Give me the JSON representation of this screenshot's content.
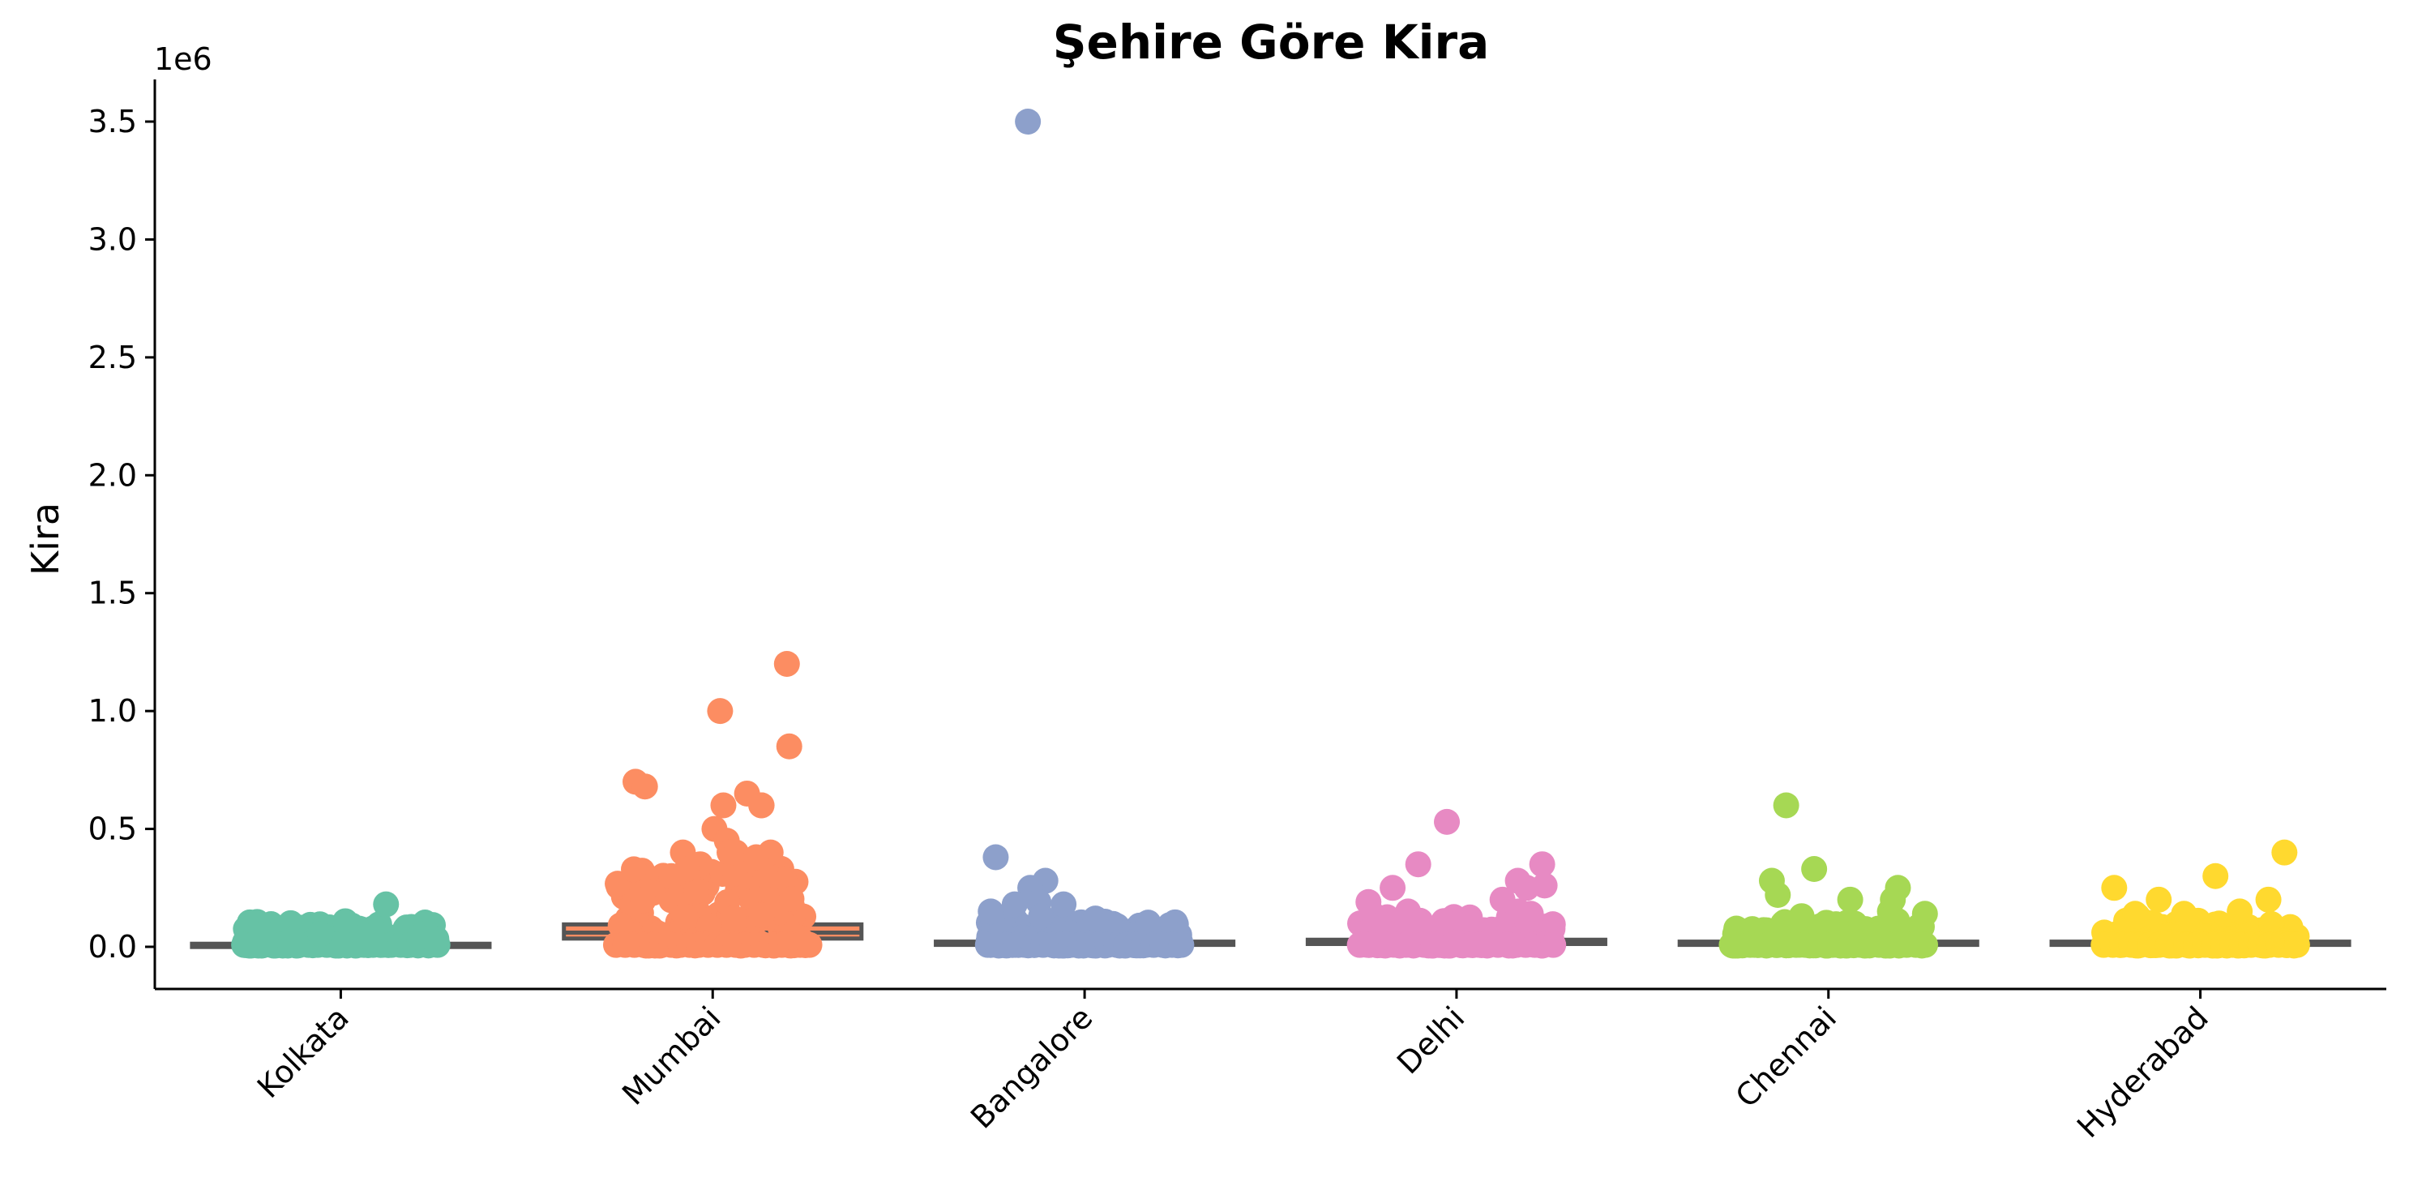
{
  "chart_data": {
    "type": "box-strip",
    "title": "Şehire Göre Kira",
    "xlabel": "",
    "ylabel": "Kira",
    "y_offset_label": "1e6",
    "y_scale_factor": 1000000,
    "ylim": [
      -180000,
      3680000
    ],
    "y_ticks": [
      0,
      500000,
      1000000,
      1500000,
      2000000,
      2500000,
      3000000,
      3500000
    ],
    "y_tick_labels": [
      "0.0",
      "0.5",
      "1.0",
      "1.5",
      "2.0",
      "2.5",
      "3.0",
      "3.5"
    ],
    "grid": false,
    "categories": [
      "Kolkata",
      "Mumbai",
      "Bangalore",
      "Delhi",
      "Chennai",
      "Hyderabad"
    ],
    "colors": [
      "#66c2a5",
      "#fc8d62",
      "#8da0cb",
      "#e78ac3",
      "#a6d854",
      "#ffd92f"
    ],
    "box_stats": [
      {
        "q1": 7000,
        "median": 9500,
        "q3": 13000
      },
      {
        "q1": 35000,
        "median": 60000,
        "q3": 95000
      },
      {
        "q1": 12000,
        "median": 16000,
        "q3": 22000
      },
      {
        "q1": 12000,
        "median": 17000,
        "q3": 30000
      },
      {
        "q1": 12000,
        "median": 16000,
        "q3": 22000
      },
      {
        "q1": 12000,
        "median": 15000,
        "q3": 22000
      }
    ],
    "outliers": [
      [
        180000,
        60000,
        55000,
        50000,
        40000,
        45000,
        35000,
        30000
      ],
      [
        1200000,
        1000000,
        850000,
        700000,
        680000,
        650000,
        600000,
        600000,
        600000,
        500000,
        450000,
        400000,
        400000,
        400000,
        400000,
        380000,
        350000,
        330000,
        300000
      ],
      [
        3500000,
        380000,
        280000,
        250000,
        190000,
        180000,
        180000,
        150000,
        130000,
        120000
      ],
      [
        530000,
        350000,
        350000,
        280000,
        260000,
        250000,
        250000,
        200000,
        190000,
        150000,
        150000,
        140000
      ],
      [
        600000,
        330000,
        280000,
        250000,
        220000,
        200000,
        200000,
        150000,
        140000,
        130000,
        120000
      ],
      [
        400000,
        300000,
        250000,
        200000,
        200000,
        150000,
        140000,
        140000,
        130000,
        120000
      ]
    ]
  }
}
